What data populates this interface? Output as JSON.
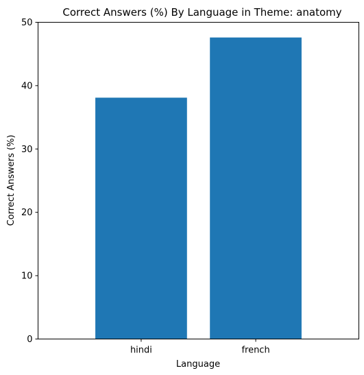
{
  "chart_data": {
    "type": "bar",
    "title": "Correct Answers (%) By Language in Theme: anatomy",
    "xlabel": "Language",
    "ylabel": "Correct Answers (%)",
    "categories": [
      "hindi",
      "french"
    ],
    "values": [
      38.1,
      47.6
    ],
    "ylim": [
      0,
      50
    ],
    "yticks": [
      0,
      10,
      20,
      30,
      40,
      50
    ],
    "grid": false,
    "legend": "none",
    "bar_color": "#1f77b4"
  }
}
